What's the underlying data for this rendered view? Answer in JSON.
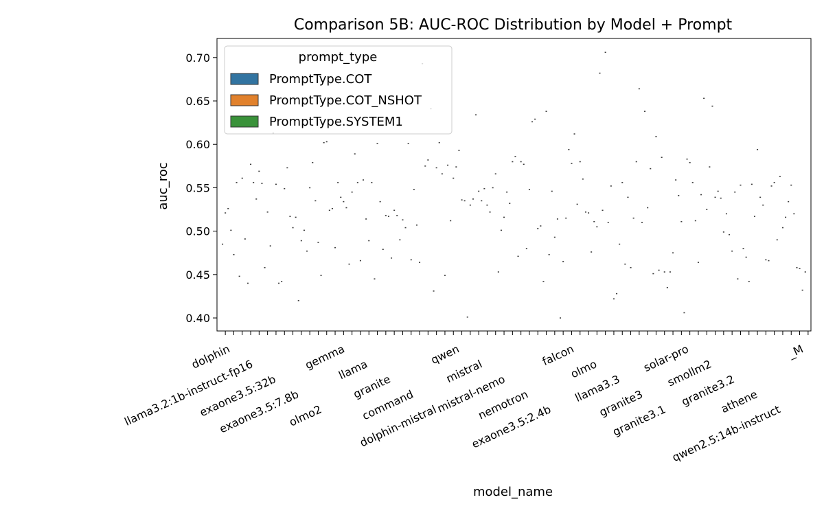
{
  "chart_data": {
    "type": "box",
    "title": "Comparison 5B: AUC-ROC Distribution by Model + Prompt",
    "xlabel": "model_name",
    "ylabel": "auc_roc",
    "ylim": [
      0.385,
      0.722
    ],
    "yticks": [
      0.4,
      0.45,
      0.5,
      0.55,
      0.6,
      0.65,
      0.7
    ],
    "ytick_labels": [
      "0.40",
      "0.45",
      "0.50",
      "0.55",
      "0.60",
      "0.65",
      "0.70"
    ],
    "legend": {
      "title": "prompt_type",
      "placement": "top-left",
      "entries": [
        {
          "name": "PromptType.COT",
          "color": "#3274a1"
        },
        {
          "name": "PromptType.COT_NSHOT",
          "color": "#e1812c"
        },
        {
          "name": "PromptType.SYSTEM1",
          "color": "#3a923a"
        }
      ]
    },
    "grid": false,
    "series_values": [
      [
        0.485,
        0.521,
        0.526
      ],
      [
        0.501,
        0.473,
        0.556
      ],
      [
        0.448,
        0.561,
        0.491
      ],
      [
        0.44,
        0.577,
        0.556
      ],
      [
        0.537,
        0.569,
        0.555
      ],
      [
        0.458,
        0.522,
        0.483
      ],
      [
        0.613,
        0.554,
        0.44
      ],
      [
        0.442,
        0.549,
        0.573
      ],
      [
        0.517,
        0.504,
        0.516
      ],
      [
        0.42,
        0.489,
        0.501
      ],
      [
        0.477,
        0.55,
        0.579
      ],
      [
        0.535,
        0.487,
        0.449
      ],
      [
        0.602,
        0.603,
        0.524
      ],
      [
        0.526,
        0.481,
        0.556
      ],
      [
        0.539,
        0.534,
        0.527
      ],
      [
        0.462,
        0.545,
        0.589
      ],
      [
        0.556,
        0.466,
        0.559
      ],
      [
        0.514,
        0.489,
        0.556
      ],
      [
        0.445,
        0.601,
        0.534
      ],
      [
        0.479,
        0.518,
        0.517
      ],
      [
        0.469,
        0.524,
        0.518
      ],
      [
        0.49,
        0.513,
        0.504
      ],
      [
        0.601,
        0.467,
        0.548
      ],
      [
        0.507,
        0.464,
        0.693
      ],
      [
        0.575,
        0.582,
        0.641
      ],
      [
        0.431,
        0.573,
        0.602
      ],
      [
        0.566,
        0.449,
        0.576
      ],
      [
        0.512,
        0.561,
        0.574
      ],
      [
        0.593,
        0.536,
        0.535
      ],
      [
        0.401,
        0.53,
        0.537
      ],
      [
        0.634,
        0.546,
        0.535
      ],
      [
        0.549,
        0.53,
        0.522
      ],
      [
        0.55,
        0.566,
        0.453
      ],
      [
        0.501,
        0.516,
        0.545
      ],
      [
        0.532,
        0.58,
        0.586
      ],
      [
        0.471,
        0.58,
        0.577
      ],
      [
        0.48,
        0.548,
        0.626
      ],
      [
        0.629,
        0.503,
        0.506
      ],
      [
        0.442,
        0.638,
        0.473
      ],
      [
        0.546,
        0.493,
        0.514
      ],
      [
        0.4,
        0.465,
        0.515
      ],
      [
        0.594,
        0.578,
        0.612
      ],
      [
        0.531,
        0.58,
        0.56
      ],
      [
        0.522,
        0.521,
        0.476
      ],
      [
        0.511,
        0.505,
        0.682
      ],
      [
        0.524,
        0.706,
        0.51
      ],
      [
        0.552,
        0.422,
        0.428
      ],
      [
        0.485,
        0.556,
        0.462
      ],
      [
        0.539,
        0.458,
        0.515
      ],
      [
        0.58,
        0.664,
        0.51
      ],
      [
        0.638,
        0.527,
        0.572
      ],
      [
        0.451,
        0.609,
        0.455
      ],
      [
        0.585,
        0.453,
        0.435
      ],
      [
        0.453,
        0.475,
        0.559
      ],
      [
        0.541,
        0.511,
        0.406
      ],
      [
        0.583,
        0.579,
        0.556
      ],
      [
        0.512,
        0.464,
        0.542
      ],
      [
        0.653,
        0.525,
        0.574
      ],
      [
        0.644,
        0.539,
        0.546
      ],
      [
        0.538,
        0.499,
        0.52
      ],
      [
        0.496,
        0.477,
        0.545
      ],
      [
        0.445,
        0.553,
        0.48
      ],
      [
        0.47,
        0.442,
        0.554
      ],
      [
        0.517,
        0.594,
        0.539
      ],
      [
        0.53,
        0.467,
        0.466
      ],
      [
        0.552,
        0.556,
        0.49
      ],
      [
        0.563,
        0.504,
        0.516
      ],
      [
        0.534,
        0.553,
        0.52
      ],
      [
        0.458,
        0.457,
        0.432
      ],
      [
        0.453
      ]
    ],
    "x_tick_labels_visible": [
      "dolphin",
      "llama3.2:1b-instruct-fp16",
      "exaone3.5:32b",
      "exaone3.5:7.8b",
      "olmo2",
      "gemma",
      "llama",
      "granite",
      "command",
      "dolphin-mistral",
      "qwen",
      "mistral",
      "mistral-nemo",
      "nemotron",
      "exaone3.5:2.4b",
      "falcon",
      "olmo",
      "llama3.3",
      "granite3",
      "granite3.1",
      "solar-pro",
      "smollm2",
      "granite3.2",
      "athene",
      "qwen2.5:14b-instruct",
      "_M"
    ]
  }
}
